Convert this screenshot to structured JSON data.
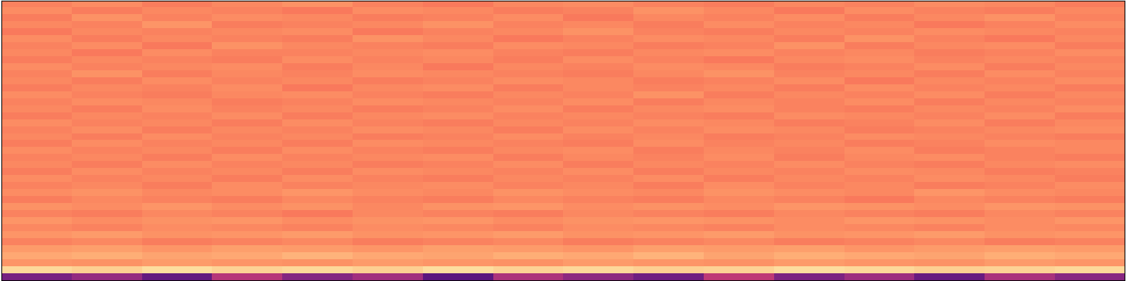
{
  "chart_data": {
    "type": "heatmap",
    "color": "magma",
    "tick_labels": false,
    "color_range": [
      0,
      1
    ],
    "cells": [
      [
        0.74,
        0.76,
        0.73,
        0.75,
        0.77,
        0.74,
        0.72,
        0.75,
        0.76,
        0.74,
        0.73,
        0.75,
        0.74,
        0.76,
        0.75,
        0.73
      ],
      [
        0.76,
        0.73,
        0.75,
        0.74,
        0.72,
        0.76,
        0.75,
        0.73,
        0.74,
        0.77,
        0.75,
        0.72,
        0.76,
        0.74,
        0.73,
        0.75
      ],
      [
        0.73,
        0.77,
        0.74,
        0.76,
        0.75,
        0.73,
        0.74,
        0.76,
        0.72,
        0.75,
        0.74,
        0.76,
        0.73,
        0.75,
        0.77,
        0.74
      ],
      [
        0.75,
        0.74,
        0.78,
        0.73,
        0.74,
        0.75,
        0.77,
        0.74,
        0.75,
        0.73,
        0.76,
        0.74,
        0.75,
        0.72,
        0.74,
        0.76
      ],
      [
        0.72,
        0.75,
        0.74,
        0.75,
        0.76,
        0.72,
        0.74,
        0.75,
        0.77,
        0.74,
        0.73,
        0.75,
        0.74,
        0.76,
        0.75,
        0.74
      ],
      [
        0.76,
        0.73,
        0.75,
        0.74,
        0.73,
        0.77,
        0.75,
        0.72,
        0.74,
        0.76,
        0.75,
        0.73,
        0.77,
        0.74,
        0.72,
        0.75
      ],
      [
        0.74,
        0.76,
        0.72,
        0.77,
        0.75,
        0.74,
        0.73,
        0.76,
        0.75,
        0.73,
        0.74,
        0.77,
        0.73,
        0.75,
        0.76,
        0.73
      ],
      [
        0.75,
        0.72,
        0.76,
        0.74,
        0.74,
        0.75,
        0.76,
        0.74,
        0.73,
        0.75,
        0.76,
        0.74,
        0.75,
        0.73,
        0.74,
        0.76
      ],
      [
        0.73,
        0.75,
        0.74,
        0.73,
        0.76,
        0.74,
        0.75,
        0.73,
        0.76,
        0.74,
        0.72,
        0.75,
        0.76,
        0.74,
        0.75,
        0.74
      ],
      [
        0.76,
        0.74,
        0.75,
        0.76,
        0.73,
        0.75,
        0.72,
        0.75,
        0.74,
        0.76,
        0.75,
        0.73,
        0.74,
        0.76,
        0.73,
        0.75
      ],
      [
        0.74,
        0.77,
        0.73,
        0.75,
        0.74,
        0.76,
        0.75,
        0.74,
        0.73,
        0.75,
        0.77,
        0.74,
        0.75,
        0.73,
        0.76,
        0.74
      ],
      [
        0.75,
        0.73,
        0.76,
        0.74,
        0.75,
        0.73,
        0.74,
        0.76,
        0.75,
        0.73,
        0.74,
        0.76,
        0.72,
        0.75,
        0.74,
        0.76
      ],
      [
        0.73,
        0.75,
        0.74,
        0.76,
        0.72,
        0.75,
        0.76,
        0.73,
        0.75,
        0.74,
        0.75,
        0.73,
        0.76,
        0.74,
        0.75,
        0.73
      ],
      [
        0.76,
        0.74,
        0.73,
        0.75,
        0.76,
        0.74,
        0.73,
        0.75,
        0.74,
        0.77,
        0.73,
        0.75,
        0.74,
        0.76,
        0.73,
        0.75
      ],
      [
        0.74,
        0.76,
        0.75,
        0.73,
        0.74,
        0.76,
        0.75,
        0.74,
        0.76,
        0.73,
        0.75,
        0.74,
        0.76,
        0.73,
        0.75,
        0.74
      ],
      [
        0.75,
        0.73,
        0.76,
        0.74,
        0.75,
        0.73,
        0.74,
        0.76,
        0.73,
        0.75,
        0.76,
        0.74,
        0.73,
        0.75,
        0.74,
        0.76
      ],
      [
        0.73,
        0.75,
        0.74,
        0.76,
        0.73,
        0.75,
        0.76,
        0.74,
        0.75,
        0.74,
        0.73,
        0.76,
        0.75,
        0.74,
        0.76,
        0.73
      ],
      [
        0.76,
        0.74,
        0.75,
        0.73,
        0.76,
        0.74,
        0.73,
        0.75,
        0.74,
        0.76,
        0.75,
        0.73,
        0.74,
        0.76,
        0.73,
        0.75
      ],
      [
        0.74,
        0.76,
        0.73,
        0.75,
        0.74,
        0.76,
        0.75,
        0.73,
        0.76,
        0.74,
        0.76,
        0.75,
        0.73,
        0.74,
        0.75,
        0.76
      ],
      [
        0.75,
        0.73,
        0.76,
        0.74,
        0.75,
        0.73,
        0.74,
        0.76,
        0.74,
        0.75,
        0.73,
        0.74,
        0.76,
        0.75,
        0.74,
        0.73
      ],
      [
        0.73,
        0.76,
        0.74,
        0.75,
        0.73,
        0.76,
        0.75,
        0.74,
        0.73,
        0.76,
        0.74,
        0.75,
        0.73,
        0.74,
        0.76,
        0.75
      ],
      [
        0.76,
        0.74,
        0.75,
        0.73,
        0.76,
        0.74,
        0.73,
        0.75,
        0.76,
        0.73,
        0.75,
        0.74,
        0.76,
        0.73,
        0.74,
        0.75
      ],
      [
        0.74,
        0.75,
        0.73,
        0.76,
        0.74,
        0.75,
        0.76,
        0.73,
        0.75,
        0.74,
        0.76,
        0.73,
        0.75,
        0.76,
        0.74,
        0.73
      ],
      [
        0.75,
        0.73,
        0.76,
        0.74,
        0.75,
        0.73,
        0.74,
        0.76,
        0.73,
        0.75,
        0.74,
        0.76,
        0.74,
        0.73,
        0.75,
        0.76
      ],
      [
        0.73,
        0.76,
        0.74,
        0.75,
        0.73,
        0.76,
        0.75,
        0.74,
        0.76,
        0.73,
        0.75,
        0.74,
        0.76,
        0.75,
        0.73,
        0.74
      ],
      [
        0.76,
        0.74,
        0.75,
        0.73,
        0.76,
        0.74,
        0.73,
        0.75,
        0.74,
        0.76,
        0.73,
        0.75,
        0.74,
        0.76,
        0.75,
        0.73
      ],
      [
        0.74,
        0.75,
        0.73,
        0.76,
        0.74,
        0.75,
        0.76,
        0.74,
        0.75,
        0.73,
        0.76,
        0.74,
        0.75,
        0.73,
        0.74,
        0.76
      ],
      [
        0.76,
        0.77,
        0.75,
        0.76,
        0.78,
        0.76,
        0.75,
        0.77,
        0.76,
        0.75,
        0.77,
        0.76,
        0.75,
        0.78,
        0.76,
        0.75
      ],
      [
        0.73,
        0.75,
        0.74,
        0.73,
        0.75,
        0.74,
        0.73,
        0.75,
        0.74,
        0.73,
        0.75,
        0.74,
        0.72,
        0.75,
        0.74,
        0.73
      ],
      [
        0.77,
        0.76,
        0.78,
        0.76,
        0.77,
        0.75,
        0.77,
        0.78,
        0.76,
        0.77,
        0.76,
        0.78,
        0.77,
        0.76,
        0.78,
        0.77
      ],
      [
        0.74,
        0.73,
        0.75,
        0.74,
        0.72,
        0.75,
        0.74,
        0.73,
        0.75,
        0.74,
        0.73,
        0.75,
        0.74,
        0.73,
        0.75,
        0.74
      ],
      [
        0.78,
        0.76,
        0.77,
        0.78,
        0.76,
        0.77,
        0.78,
        0.76,
        0.77,
        0.78,
        0.77,
        0.76,
        0.78,
        0.77,
        0.76,
        0.78
      ],
      [
        0.75,
        0.74,
        0.76,
        0.75,
        0.74,
        0.76,
        0.75,
        0.74,
        0.76,
        0.75,
        0.74,
        0.76,
        0.75,
        0.74,
        0.76,
        0.75
      ],
      [
        0.78,
        0.79,
        0.77,
        0.78,
        0.79,
        0.77,
        0.78,
        0.79,
        0.77,
        0.78,
        0.79,
        0.77,
        0.78,
        0.79,
        0.77,
        0.78
      ],
      [
        0.74,
        0.75,
        0.73,
        0.74,
        0.75,
        0.73,
        0.74,
        0.75,
        0.73,
        0.74,
        0.75,
        0.73,
        0.74,
        0.75,
        0.73,
        0.74
      ],
      [
        0.79,
        0.8,
        0.78,
        0.8,
        0.79,
        0.78,
        0.8,
        0.79,
        0.78,
        0.8,
        0.79,
        0.8,
        0.78,
        0.79,
        0.8,
        0.79
      ],
      [
        0.82,
        0.83,
        0.81,
        0.82,
        0.84,
        0.82,
        0.81,
        0.83,
        0.82,
        0.84,
        0.81,
        0.83,
        0.82,
        0.81,
        0.83,
        0.82
      ],
      [
        0.78,
        0.77,
        0.79,
        0.78,
        0.77,
        0.79,
        0.78,
        0.77,
        0.79,
        0.78,
        0.77,
        0.79,
        0.78,
        0.77,
        0.79,
        0.78
      ],
      [
        0.92,
        0.9,
        0.93,
        0.91,
        0.92,
        0.9,
        0.93,
        0.91,
        0.92,
        0.9,
        0.91,
        0.93,
        0.92,
        0.9,
        0.91,
        0.92
      ],
      [
        0.35,
        0.42,
        0.3,
        0.5,
        0.38,
        0.45,
        0.28,
        0.48,
        0.4,
        0.33,
        0.52,
        0.36,
        0.44,
        0.31,
        0.47,
        0.39
      ]
    ]
  }
}
